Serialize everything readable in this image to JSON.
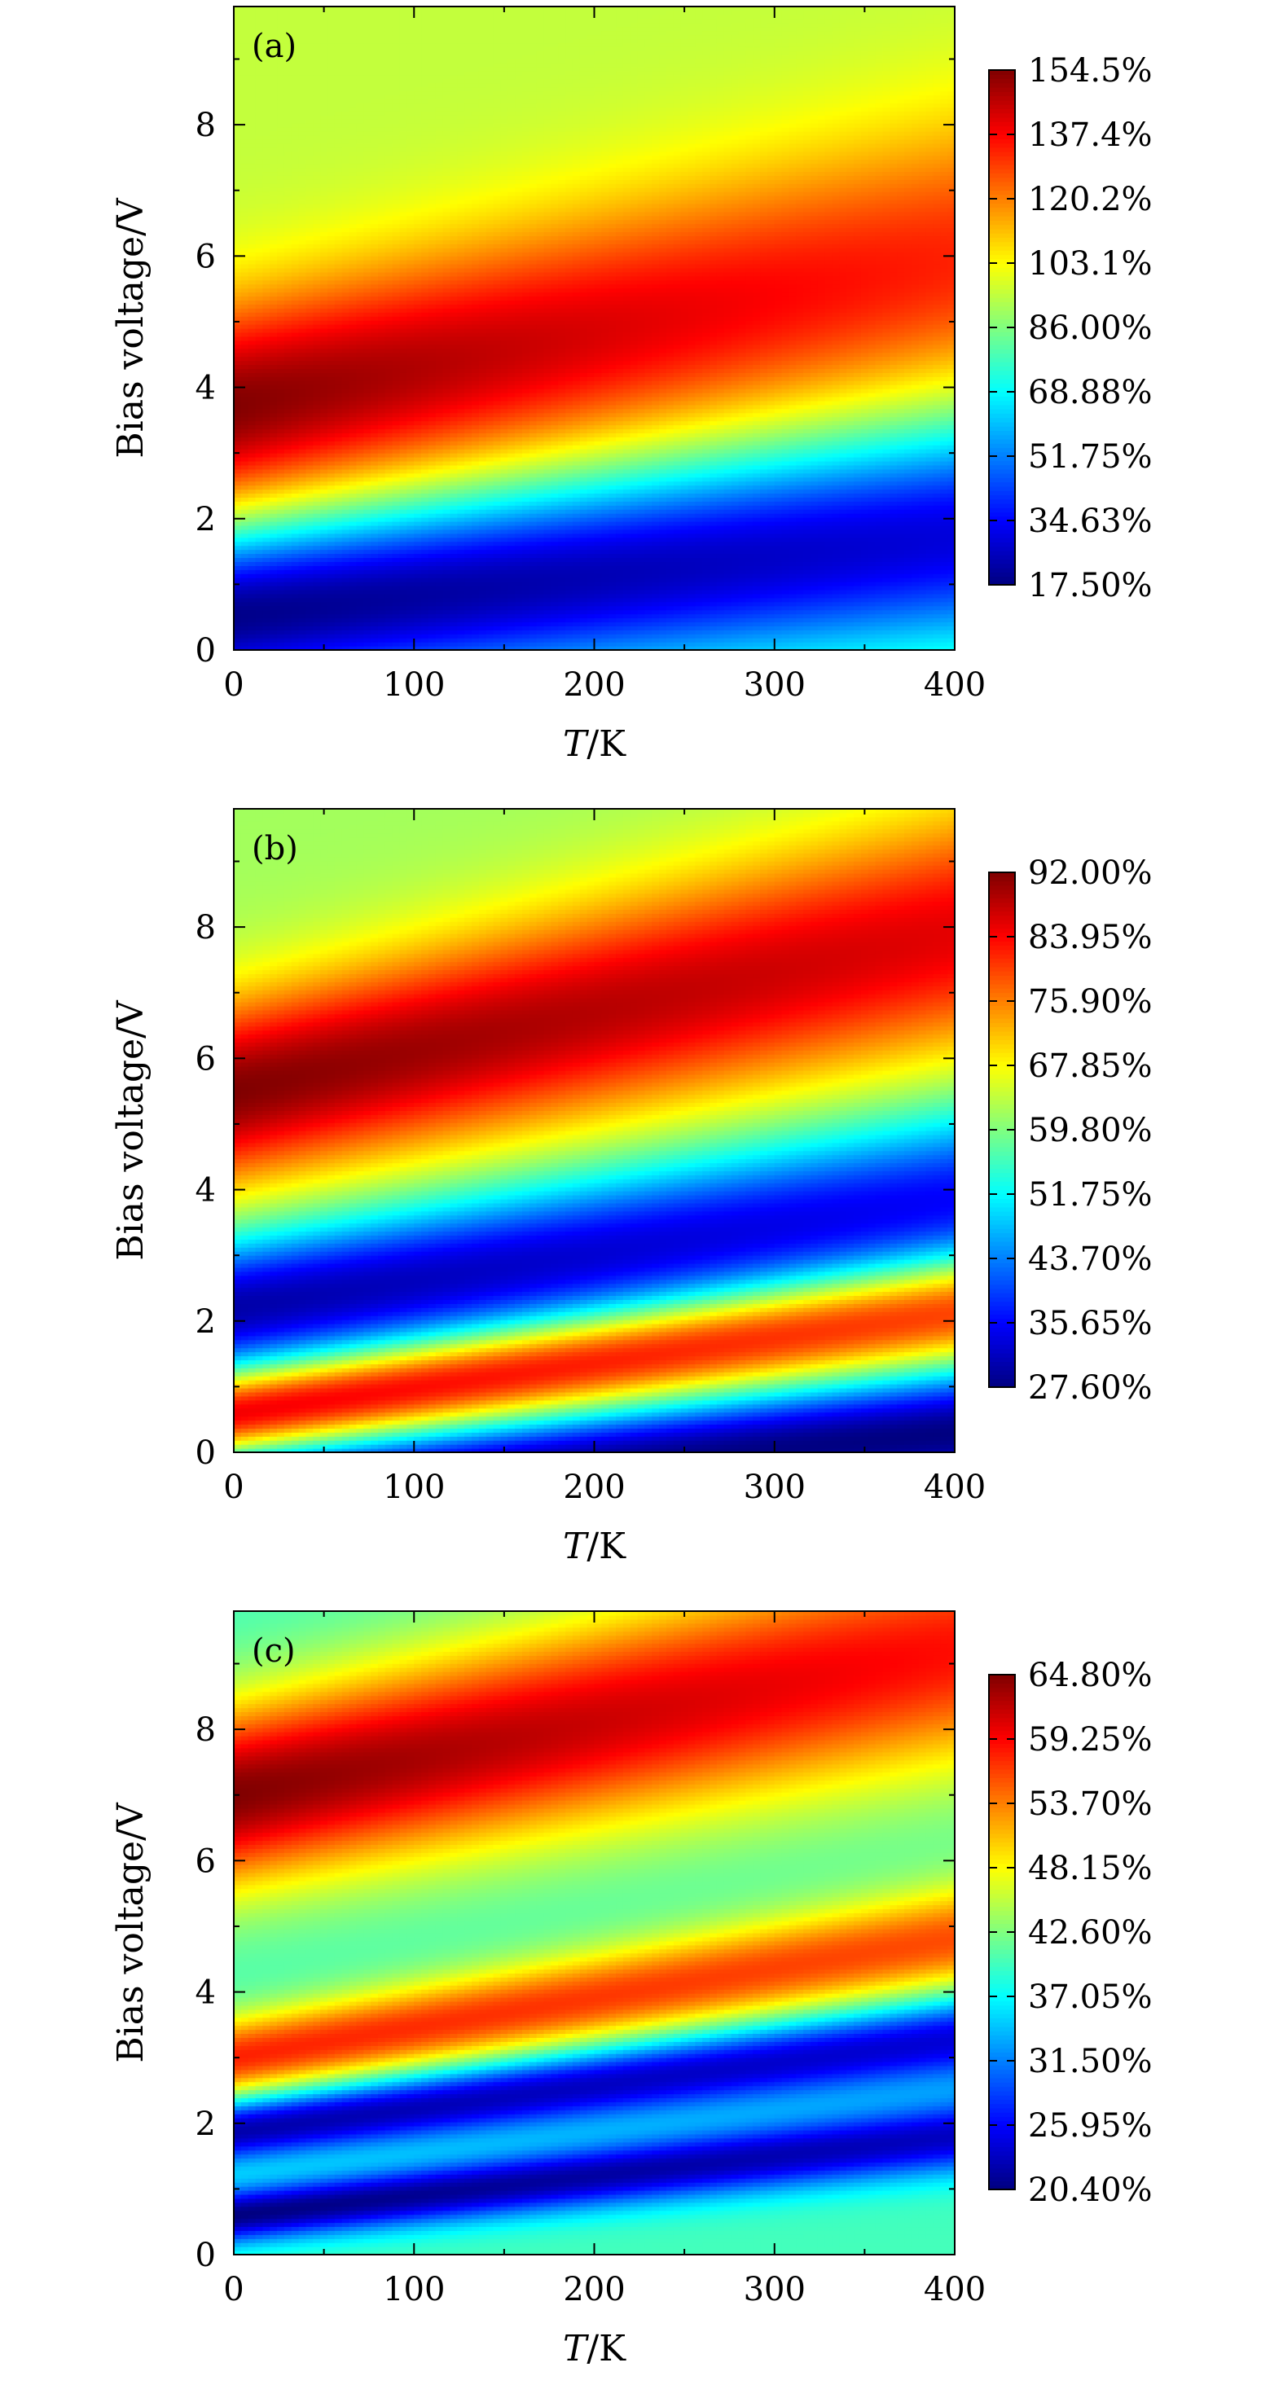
{
  "chart_data": [
    {
      "type": "heatmap",
      "panel_label": "(a)",
      "xlabel_italic": "T",
      "xlabel_rest": "/K",
      "ylabel": "Bias voltage/V",
      "xlim": [
        0,
        400
      ],
      "ylim": [
        0,
        9.8
      ],
      "x_ticks": [
        "0",
        "100",
        "200",
        "300",
        "400"
      ],
      "y_ticks": [
        "0",
        "2",
        "4",
        "6",
        "8"
      ],
      "colorbar_range": [
        17.5,
        154.5
      ],
      "colorbar_ticks": [
        "154.5%",
        "137.4%",
        "120.2%",
        "103.1%",
        "86.00%",
        "68.88%",
        "51.75%",
        "34.63%",
        "17.50%"
      ],
      "ridges": [
        {
          "kind": "high",
          "v0": 3.7,
          "slope": 0.0055,
          "width": 1.15,
          "peak": 154.5,
          "decay": 0.0011
        },
        {
          "kind": "low",
          "v0": 0.55,
          "slope": 0.003,
          "width": 0.95,
          "peak": 17.5,
          "decay": 0.0004
        }
      ],
      "background": 95
    },
    {
      "type": "heatmap",
      "panel_label": "(b)",
      "xlabel_italic": "T",
      "xlabel_rest": "/K",
      "ylabel": "Bias voltage/V",
      "xlim": [
        0,
        400
      ],
      "ylim": [
        0,
        9.8
      ],
      "x_ticks": [
        "0",
        "100",
        "200",
        "300",
        "400"
      ],
      "y_ticks": [
        "0",
        "2",
        "4",
        "6",
        "8"
      ],
      "colorbar_range": [
        27.6,
        92.0
      ],
      "colorbar_ticks": [
        "92.00%",
        "83.95%",
        "75.90%",
        "67.85%",
        "59.80%",
        "51.75%",
        "43.70%",
        "35.65%",
        "27.60%"
      ],
      "ridges": [
        {
          "kind": "high",
          "v0": 5.5,
          "slope": 0.006,
          "width": 1.0,
          "peak": 92.0,
          "decay": 0.0006
        },
        {
          "kind": "low",
          "v0": 2.2,
          "slope": 0.004,
          "width": 0.75,
          "peak": 30.0,
          "decay": 0.0004
        },
        {
          "kind": "high",
          "v0": 0.6,
          "slope": 0.004,
          "width": 0.45,
          "peak": 90.0,
          "decay": 0.0002
        },
        {
          "kind": "low",
          "v0": -0.7,
          "slope": 0.0025,
          "width": 0.55,
          "peak": 27.6,
          "decay": 0.0
        }
      ],
      "background": 62
    },
    {
      "type": "heatmap",
      "panel_label": "(c)",
      "xlabel_italic": "T",
      "xlabel_rest": "/K",
      "ylabel": "Bias voltage/V",
      "xlim": [
        0,
        400
      ],
      "ylim": [
        0,
        9.8
      ],
      "x_ticks": [
        "0",
        "100",
        "200",
        "300",
        "400"
      ],
      "y_ticks": [
        "0",
        "2",
        "4",
        "6",
        "8"
      ],
      "colorbar_range": [
        20.4,
        64.8
      ],
      "colorbar_ticks": [
        "64.80%",
        "59.25%",
        "53.70%",
        "48.15%",
        "42.60%",
        "37.05%",
        "31.50%",
        "25.95%",
        "20.40%"
      ],
      "ridges": [
        {
          "kind": "high",
          "v0": 7.0,
          "slope": 0.0055,
          "width": 1.0,
          "peak": 64.8,
          "decay": 0.0007
        },
        {
          "kind": "high",
          "v0": 3.0,
          "slope": 0.0045,
          "width": 0.45,
          "peak": 58.0,
          "decay": 0.0003
        },
        {
          "kind": "low",
          "v0": 1.9,
          "slope": 0.0035,
          "width": 0.35,
          "peak": 21.5,
          "decay": 0.0003
        },
        {
          "kind": "low",
          "v0": 0.6,
          "slope": 0.003,
          "width": 0.3,
          "peak": 20.4,
          "decay": 0.0004
        }
      ],
      "background": 40
    }
  ]
}
